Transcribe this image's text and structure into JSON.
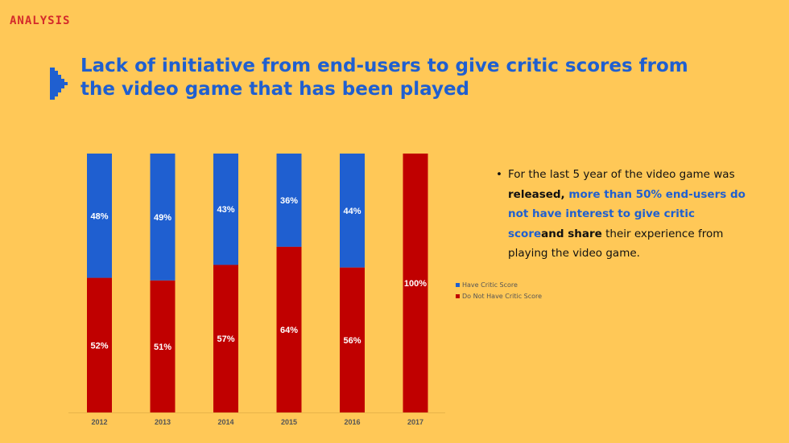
{
  "header": {
    "section": "ANALYSIS"
  },
  "title": {
    "line1": "Lack of initiative from end-users to give critic scores from",
    "line2": "the video game that has been played"
  },
  "bullet": {
    "marker": "•",
    "part1": "For the last 5 year of the video game was ",
    "part2": "released, ",
    "part3": "more than 50% end-users do not have interest to give critic score",
    "part4": "and share",
    "part5": " their experience from playing the video game."
  },
  "colors": {
    "background": "#FFC857",
    "blue": "#1F5FD0",
    "red": "#C00000",
    "section": "#D42B2B"
  },
  "icons": {
    "title_marker": "play-arrow-icon"
  },
  "chart_data": {
    "type": "bar",
    "stacked": true,
    "categories": [
      "2012",
      "2013",
      "2014",
      "2015",
      "2016",
      "2017"
    ],
    "series": [
      {
        "name": "Have Critic Score",
        "color": "#1F5FD0",
        "values": [
          48,
          49,
          43,
          36,
          44,
          0
        ],
        "labels": [
          "48%",
          "49%",
          "43%",
          "36%",
          "44%",
          ""
        ]
      },
      {
        "name": "Do Not Have Critic Score",
        "color": "#C00000",
        "values": [
          52,
          51,
          57,
          64,
          56,
          100
        ],
        "labels": [
          "52%",
          "51%",
          "57%",
          "64%",
          "56%",
          "100%"
        ]
      }
    ],
    "ylim": [
      0,
      100
    ],
    "grid": false,
    "legend_position": "right"
  }
}
